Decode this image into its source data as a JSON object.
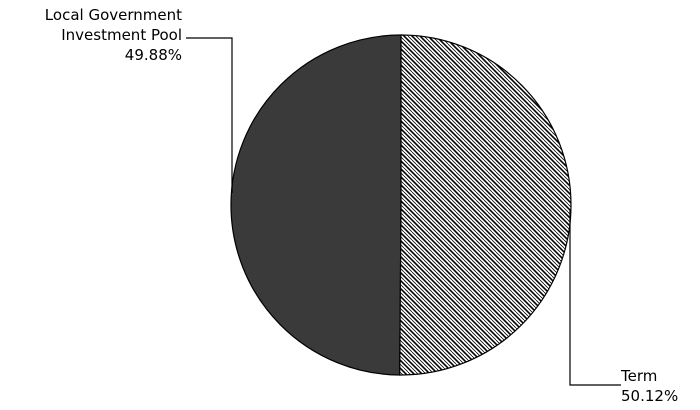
{
  "chart_data": {
    "type": "pie",
    "slices": [
      {
        "name_lines": [
          "Local Government",
          "Investment Pool"
        ],
        "percent_label": "49.88%",
        "value": 49.88,
        "color": "#3a3a3a",
        "fill": "solid"
      },
      {
        "name_lines": [
          "Term"
        ],
        "percent_label": "50.12%",
        "value": 50.12,
        "color": "#ffffff",
        "fill": "diagonal-hatch"
      }
    ]
  }
}
